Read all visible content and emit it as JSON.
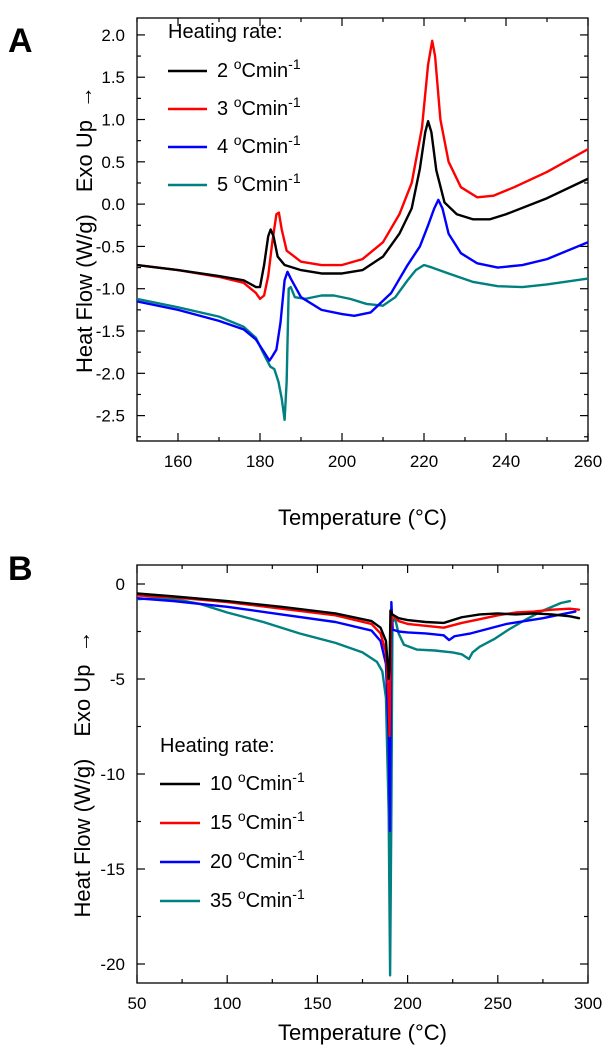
{
  "chart_data": [
    {
      "type": "line",
      "panel_label": "A",
      "xlabel": "Temperature (°C)",
      "ylabel": "Heat Flow (W/g)",
      "ylabel_extra": "Exo Up",
      "xlim": [
        150,
        260
      ],
      "ylim": [
        -2.8,
        2.2
      ],
      "xticks": [
        160,
        180,
        200,
        220,
        240,
        260
      ],
      "yticks": [
        -2.5,
        -2.0,
        -1.5,
        -1.0,
        -0.5,
        0.0,
        0.5,
        1.0,
        1.5,
        2.0
      ],
      "ytick_labels": [
        "-2.5",
        "-2.0",
        "-1.5",
        "-1.0",
        "-0.5",
        "0.0",
        "0.5",
        "1.0",
        "1.5",
        "2.0"
      ],
      "legend_title": "Heating rate:",
      "legend_position": "top-left",
      "series": [
        {
          "name": "2 °Cmin-1",
          "label_num": "2",
          "color": "#000000",
          "points": [
            [
              150,
              -0.72
            ],
            [
              160,
              -0.78
            ],
            [
              170,
              -0.85
            ],
            [
              176,
              -0.9
            ],
            [
              179,
              -0.98
            ],
            [
              180,
              -0.98
            ],
            [
              181,
              -0.72
            ],
            [
              182,
              -0.38
            ],
            [
              182.6,
              -0.3
            ],
            [
              183.3,
              -0.38
            ],
            [
              184.3,
              -0.62
            ],
            [
              186,
              -0.72
            ],
            [
              190,
              -0.78
            ],
            [
              195,
              -0.82
            ],
            [
              200,
              -0.82
            ],
            [
              205,
              -0.78
            ],
            [
              210,
              -0.62
            ],
            [
              214,
              -0.35
            ],
            [
              217,
              -0.05
            ],
            [
              219,
              0.42
            ],
            [
              220.3,
              0.85
            ],
            [
              221,
              0.98
            ],
            [
              221.8,
              0.85
            ],
            [
              223,
              0.4
            ],
            [
              225,
              0.02
            ],
            [
              228,
              -0.12
            ],
            [
              232,
              -0.18
            ],
            [
              236,
              -0.18
            ],
            [
              240,
              -0.12
            ],
            [
              250,
              0.07
            ],
            [
              260,
              0.3
            ]
          ]
        },
        {
          "name": "3 °Cmin-1",
          "label_num": "3",
          "color": "#ff0000",
          "points": [
            [
              150,
              -0.72
            ],
            [
              160,
              -0.78
            ],
            [
              170,
              -0.86
            ],
            [
              176,
              -0.93
            ],
            [
              179,
              -1.05
            ],
            [
              180,
              -1.12
            ],
            [
              181,
              -1.08
            ],
            [
              182,
              -0.85
            ],
            [
              183,
              -0.45
            ],
            [
              184,
              -0.12
            ],
            [
              184.6,
              -0.1
            ],
            [
              185.3,
              -0.3
            ],
            [
              186.5,
              -0.55
            ],
            [
              190,
              -0.68
            ],
            [
              195,
              -0.72
            ],
            [
              200,
              -0.72
            ],
            [
              205,
              -0.65
            ],
            [
              210,
              -0.45
            ],
            [
              214,
              -0.12
            ],
            [
              217,
              0.25
            ],
            [
              219.5,
              0.9
            ],
            [
              221,
              1.65
            ],
            [
              222,
              1.93
            ],
            [
              222.7,
              1.75
            ],
            [
              224,
              1.0
            ],
            [
              226,
              0.5
            ],
            [
              229,
              0.2
            ],
            [
              233,
              0.08
            ],
            [
              237,
              0.1
            ],
            [
              242,
              0.2
            ],
            [
              250,
              0.38
            ],
            [
              260,
              0.65
            ]
          ]
        },
        {
          "name": "4 °Cmin-1",
          "label_num": "4",
          "color": "#0000ff",
          "points": [
            [
              150,
              -1.15
            ],
            [
              160,
              -1.25
            ],
            [
              170,
              -1.38
            ],
            [
              176,
              -1.48
            ],
            [
              179,
              -1.6
            ],
            [
              181,
              -1.75
            ],
            [
              182.3,
              -1.85
            ],
            [
              183,
              -1.8
            ],
            [
              184,
              -1.72
            ],
            [
              185,
              -1.4
            ],
            [
              186,
              -0.9
            ],
            [
              186.7,
              -0.8
            ],
            [
              187.5,
              -0.88
            ],
            [
              190,
              -1.1
            ],
            [
              195,
              -1.25
            ],
            [
              200,
              -1.3
            ],
            [
              203,
              -1.32
            ],
            [
              207,
              -1.28
            ],
            [
              212,
              -1.05
            ],
            [
              216,
              -0.72
            ],
            [
              219,
              -0.5
            ],
            [
              221,
              -0.25
            ],
            [
              222.5,
              -0.05
            ],
            [
              223.5,
              0.05
            ],
            [
              224.5,
              -0.05
            ],
            [
              226,
              -0.35
            ],
            [
              229,
              -0.58
            ],
            [
              233,
              -0.7
            ],
            [
              238,
              -0.75
            ],
            [
              244,
              -0.72
            ],
            [
              250,
              -0.65
            ],
            [
              260,
              -0.45
            ]
          ]
        },
        {
          "name": "5 °Cmin-1",
          "label_num": "5",
          "color": "#008080",
          "points": [
            [
              150,
              -1.12
            ],
            [
              160,
              -1.22
            ],
            [
              170,
              -1.33
            ],
            [
              176,
              -1.45
            ],
            [
              179,
              -1.58
            ],
            [
              181,
              -1.78
            ],
            [
              182.5,
              -1.92
            ],
            [
              183.5,
              -1.95
            ],
            [
              184.5,
              -2.1
            ],
            [
              185.3,
              -2.3
            ],
            [
              186,
              -2.55
            ],
            [
              186.5,
              -2.1
            ],
            [
              187,
              -1.0
            ],
            [
              187.5,
              -0.98
            ],
            [
              188.5,
              -1.1
            ],
            [
              191,
              -1.12
            ],
            [
              195,
              -1.08
            ],
            [
              198,
              -1.08
            ],
            [
              202,
              -1.12
            ],
            [
              206,
              -1.18
            ],
            [
              210,
              -1.2
            ],
            [
              213,
              -1.1
            ],
            [
              216,
              -0.9
            ],
            [
              218,
              -0.78
            ],
            [
              220,
              -0.72
            ],
            [
              222,
              -0.75
            ],
            [
              226,
              -0.82
            ],
            [
              232,
              -0.92
            ],
            [
              238,
              -0.97
            ],
            [
              244,
              -0.98
            ],
            [
              250,
              -0.95
            ],
            [
              260,
              -0.88
            ]
          ]
        }
      ]
    },
    {
      "type": "line",
      "panel_label": "B",
      "xlabel": "Temperature (°C)",
      "ylabel": "Heat Flow (W/g)",
      "ylabel_extra": "Exo Up",
      "xlim": [
        50,
        300
      ],
      "ylim": [
        -21,
        1
      ],
      "xticks": [
        50,
        100,
        150,
        200,
        250,
        300
      ],
      "yticks": [
        0,
        -5,
        -10,
        -15,
        -20
      ],
      "ytick_labels": [
        "0",
        "-5",
        "-10",
        "-15",
        "-20"
      ],
      "legend_title": "Heating rate:",
      "legend_position": "bottom-left",
      "series": [
        {
          "name": "10 °Cmin-1",
          "label_num": "10",
          "color": "#000000",
          "points": [
            [
              50,
              -0.5
            ],
            [
              70,
              -0.65
            ],
            [
              100,
              -0.9
            ],
            [
              130,
              -1.2
            ],
            [
              160,
              -1.55
            ],
            [
              180,
              -1.95
            ],
            [
              185,
              -2.3
            ],
            [
              188,
              -3.0
            ],
            [
              189.5,
              -5.0
            ],
            [
              190,
              -4.5
            ],
            [
              190.5,
              -1.4
            ],
            [
              191.5,
              -1.6
            ],
            [
              195,
              -1.8
            ],
            [
              200,
              -1.9
            ],
            [
              210,
              -2.0
            ],
            [
              220,
              -2.05
            ],
            [
              230,
              -1.75
            ],
            [
              240,
              -1.6
            ],
            [
              250,
              -1.55
            ],
            [
              260,
              -1.6
            ],
            [
              270,
              -1.55
            ],
            [
              280,
              -1.6
            ],
            [
              290,
              -1.7
            ],
            [
              295,
              -1.8
            ]
          ]
        },
        {
          "name": "15 °Cmin-1",
          "label_num": "15",
          "color": "#ff0000",
          "points": [
            [
              50,
              -0.6
            ],
            [
              70,
              -0.7
            ],
            [
              100,
              -0.95
            ],
            [
              130,
              -1.3
            ],
            [
              160,
              -1.65
            ],
            [
              180,
              -2.1
            ],
            [
              185,
              -2.6
            ],
            [
              188,
              -3.6
            ],
            [
              189.5,
              -6.0
            ],
            [
              190,
              -8.0
            ],
            [
              190.7,
              -2.5
            ],
            [
              191.5,
              -1.6
            ],
            [
              195,
              -1.95
            ],
            [
              200,
              -2.1
            ],
            [
              210,
              -2.2
            ],
            [
              220,
              -2.3
            ],
            [
              230,
              -2.05
            ],
            [
              240,
              -1.85
            ],
            [
              250,
              -1.65
            ],
            [
              260,
              -1.5
            ],
            [
              270,
              -1.45
            ],
            [
              280,
              -1.35
            ],
            [
              290,
              -1.3
            ],
            [
              295,
              -1.35
            ]
          ]
        },
        {
          "name": "20 °Cmin-1",
          "label_num": "20",
          "color": "#0000ff",
          "points": [
            [
              50,
              -0.75
            ],
            [
              70,
              -0.9
            ],
            [
              100,
              -1.2
            ],
            [
              130,
              -1.6
            ],
            [
              160,
              -2.0
            ],
            [
              180,
              -2.45
            ],
            [
              185,
              -3.0
            ],
            [
              188,
              -4.2
            ],
            [
              189.5,
              -8.0
            ],
            [
              190.2,
              -13.0
            ],
            [
              191,
              -0.95
            ],
            [
              191.7,
              -2.4
            ],
            [
              195,
              -2.5
            ],
            [
              200,
              -2.55
            ],
            [
              210,
              -2.6
            ],
            [
              220,
              -2.7
            ],
            [
              223,
              -2.95
            ],
            [
              226,
              -2.75
            ],
            [
              235,
              -2.6
            ],
            [
              245,
              -2.35
            ],
            [
              255,
              -2.1
            ],
            [
              265,
              -1.95
            ],
            [
              275,
              -1.8
            ],
            [
              285,
              -1.6
            ],
            [
              293,
              -1.45
            ]
          ]
        },
        {
          "name": "35 °Cmin-1",
          "label_num": "35",
          "color": "#008080",
          "points": [
            [
              50,
              -0.8
            ],
            [
              60,
              -0.75
            ],
            [
              70,
              -0.78
            ],
            [
              85,
              -1.05
            ],
            [
              100,
              -1.5
            ],
            [
              120,
              -2.0
            ],
            [
              140,
              -2.6
            ],
            [
              160,
              -3.1
            ],
            [
              175,
              -3.6
            ],
            [
              183,
              -4.1
            ],
            [
              186,
              -4.6
            ],
            [
              188,
              -6.0
            ],
            [
              189.5,
              -12.0
            ],
            [
              190.3,
              -20.6
            ],
            [
              191,
              -12.0
            ],
            [
              191.6,
              -2.0
            ],
            [
              193,
              -1.8
            ],
            [
              195,
              -2.6
            ],
            [
              198,
              -3.2
            ],
            [
              205,
              -3.45
            ],
            [
              215,
              -3.5
            ],
            [
              225,
              -3.6
            ],
            [
              230,
              -3.7
            ],
            [
              234,
              -3.95
            ],
            [
              236,
              -3.6
            ],
            [
              240,
              -3.3
            ],
            [
              248,
              -2.9
            ],
            [
              256,
              -2.4
            ],
            [
              265,
              -1.9
            ],
            [
              275,
              -1.4
            ],
            [
              285,
              -1.0
            ],
            [
              290,
              -0.9
            ]
          ]
        }
      ]
    }
  ]
}
